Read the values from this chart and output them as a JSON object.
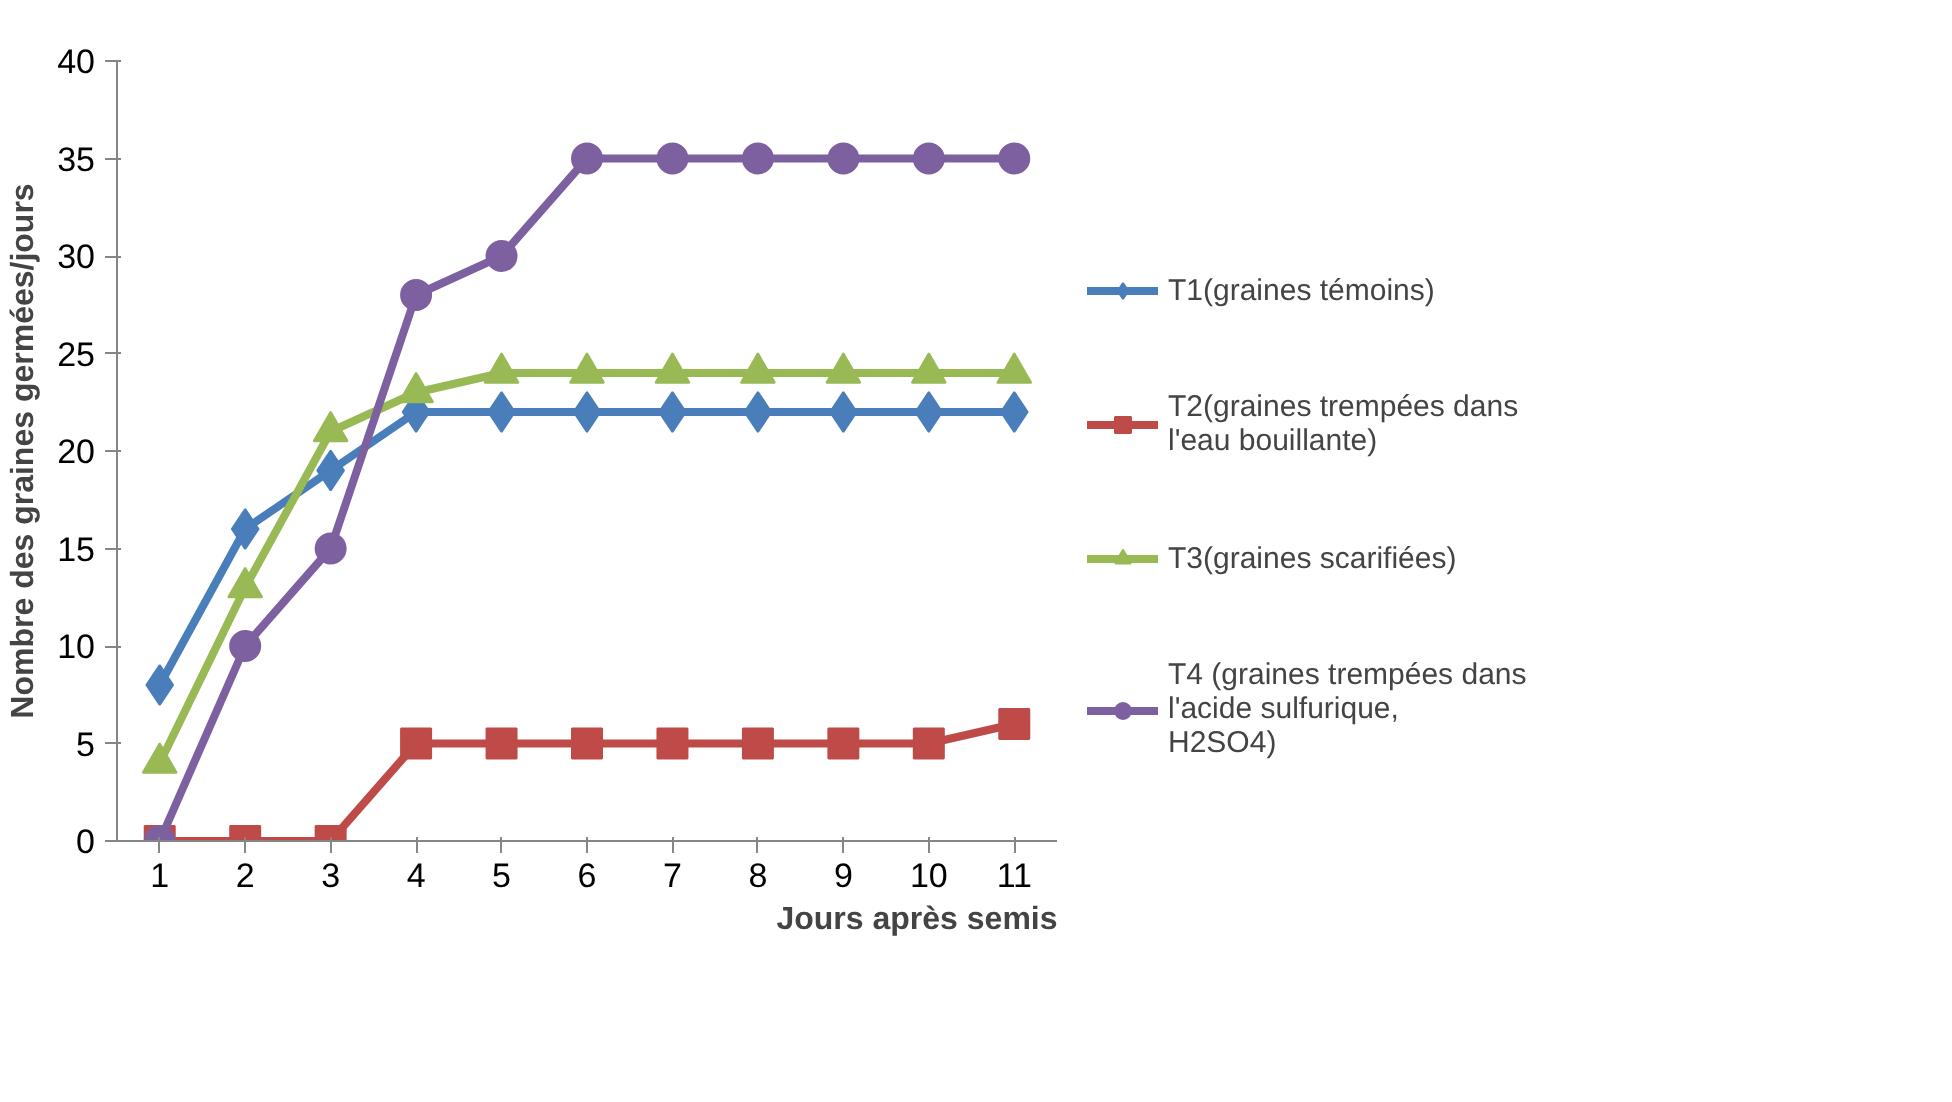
{
  "chart_data": {
    "type": "line",
    "xlabel": "Jours après semis",
    "ylabel": "Nombre des graines germées/jours",
    "categories": [
      "1",
      "2",
      "3",
      "4",
      "5",
      "6",
      "7",
      "8",
      "9",
      "10",
      "11"
    ],
    "ylim": [
      0,
      40
    ],
    "yticks": [
      0,
      5,
      10,
      15,
      20,
      25,
      30,
      35,
      40
    ],
    "grid": false,
    "legend": "right",
    "series": [
      {
        "name": "T1(graines témoins)",
        "color": "#4a7ebb",
        "marker": "diamond",
        "values": [
          8,
          16,
          19,
          22,
          22,
          22,
          22,
          22,
          22,
          22,
          22
        ]
      },
      {
        "name": "T2(graines trempées dans l'eau bouillante)",
        "color": "#be4b48",
        "marker": "square",
        "values": [
          0,
          0,
          0,
          5,
          5,
          5,
          5,
          5,
          5,
          5,
          6
        ]
      },
      {
        "name": "T3(graines scarifiées)",
        "color": "#98b954",
        "marker": "triangle",
        "values": [
          4,
          13,
          21,
          23,
          24,
          24,
          24,
          24,
          24,
          24,
          24
        ]
      },
      {
        "name": "T4 (graines trempées dans l'acide sulfurique, H2SO4)",
        "color": "#7d60a0",
        "marker": "circle",
        "values": [
          0,
          10,
          15,
          28,
          30,
          35,
          35,
          35,
          35,
          35,
          35
        ]
      }
    ]
  }
}
